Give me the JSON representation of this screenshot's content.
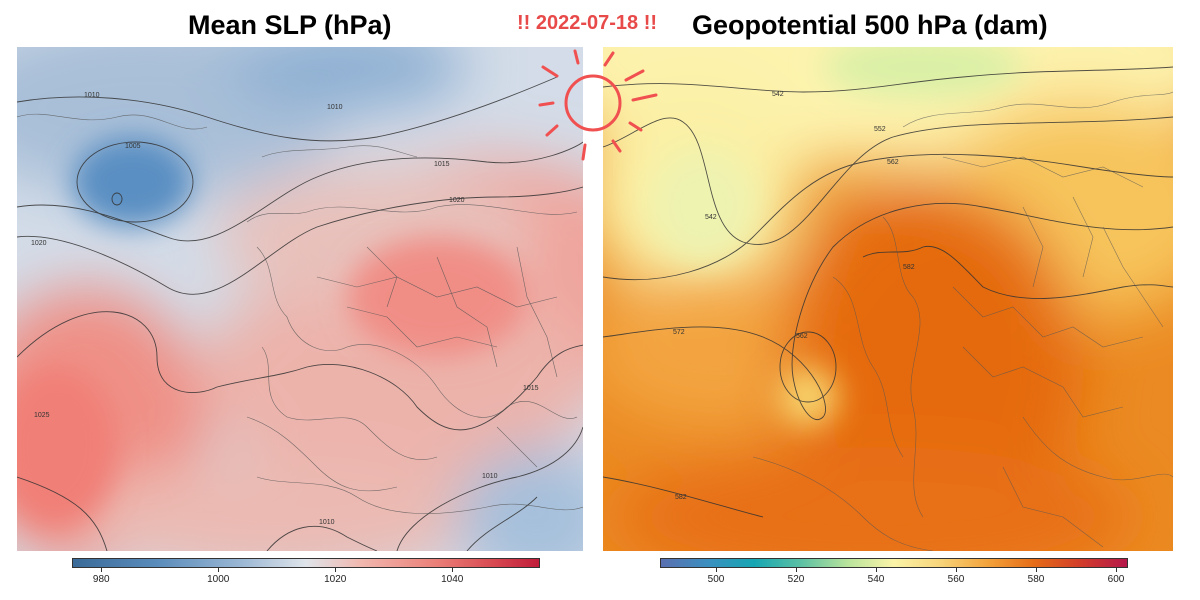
{
  "titles": {
    "left": "Mean SLP (hPa)",
    "right": "Geopotential 500 hPa (dam)",
    "date_label": "!! 2022-07-18 !!"
  },
  "left_map": {
    "field": "Mean SLP",
    "units": "hPa",
    "contour_labels": [
      "1010",
      "1010",
      "1005",
      "1015",
      "1020",
      "1020",
      "1025",
      "1015",
      "1010",
      "1010"
    ],
    "colorbar": {
      "ticks": [
        "980",
        "1000",
        "1020",
        "1040"
      ],
      "range": [
        975,
        1055
      ],
      "tick_values": [
        980,
        1000,
        1020,
        1040
      ]
    },
    "colors": {
      "low": "#4f86bd",
      "neutral": "#dde0e6",
      "high": "#ef7f76"
    }
  },
  "right_map": {
    "field": "Geopotential 500 hPa",
    "units": "dam",
    "contour_labels": [
      "542",
      "552",
      "562",
      "542",
      "582",
      "572",
      "562",
      "582"
    ],
    "colorbar": {
      "ticks": [
        "500",
        "520",
        "540",
        "560",
        "580",
        "600"
      ],
      "range": [
        486,
        603
      ],
      "tick_values": [
        500,
        520,
        540,
        560,
        580,
        600
      ]
    },
    "colors": {
      "low": "#c9ef9e",
      "mid": "#fdf0a6",
      "high": "#e5690f"
    }
  },
  "decoration": {
    "sun_icon_color": "#f05050"
  }
}
